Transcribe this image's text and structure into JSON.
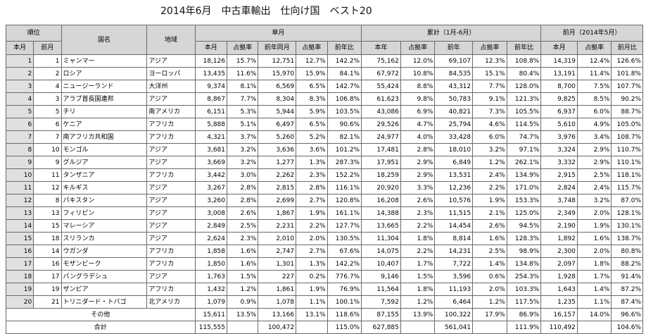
{
  "title": "2014年6月　中古車輸出　仕向け国　ベスト20",
  "headers": {
    "rank_group": "順位",
    "country": "国名",
    "region": "地域",
    "monthly": "単月",
    "cumulative": "累計（1月-6月）",
    "prev_month": "前月（2014年5月）",
    "this_month_rank": "本月",
    "prev_month_rank": "前月",
    "m_cols": [
      "本月",
      "占拠率",
      "前年同月",
      "占拠率",
      "前年比"
    ],
    "c_cols": [
      "本年",
      "占拠率",
      "前年",
      "占拠率",
      "前年比"
    ],
    "p_cols": [
      "本月",
      "占拠率",
      "前月比"
    ]
  },
  "rows": [
    {
      "rank": "1",
      "prev": "1",
      "country": "ミャンマー",
      "region": "アジア",
      "m": [
        "18,126",
        "15.7%",
        "12,751",
        "12.7%",
        "142.2%"
      ],
      "c": [
        "75,162",
        "12.0%",
        "69,107",
        "12.3%",
        "108.8%"
      ],
      "p": [
        "14,319",
        "12.4%",
        "126.6%"
      ]
    },
    {
      "rank": "2",
      "prev": "2",
      "country": "ロシア",
      "region": "ヨーロッパ",
      "m": [
        "13,435",
        "11.6%",
        "15,970",
        "15.9%",
        "84.1%"
      ],
      "c": [
        "67,972",
        "10.8%",
        "84,535",
        "15.1%",
        "80.4%"
      ],
      "p": [
        "13,191",
        "11.4%",
        "101.8%"
      ]
    },
    {
      "rank": "3",
      "prev": "4",
      "country": "ニュージーランド",
      "region": "大洋州",
      "m": [
        "9,374",
        "8.1%",
        "6,569",
        "6.5%",
        "142.7%"
      ],
      "c": [
        "55,424",
        "8.8%",
        "43,312",
        "7.7%",
        "128.0%"
      ],
      "p": [
        "8,700",
        "7.5%",
        "107.7%"
      ]
    },
    {
      "rank": "4",
      "prev": "3",
      "country": "アラブ首長国連邦",
      "region": "アジア",
      "m": [
        "8,867",
        "7.7%",
        "8,304",
        "8.3%",
        "106.8%"
      ],
      "c": [
        "61,623",
        "9.8%",
        "50,783",
        "9.1%",
        "121.3%"
      ],
      "p": [
        "9,825",
        "8.5%",
        "90.2%"
      ]
    },
    {
      "rank": "5",
      "prev": "5",
      "country": "チリ",
      "region": "南アメリカ",
      "m": [
        "6,151",
        "5.3%",
        "5,944",
        "5.9%",
        "103.5%"
      ],
      "c": [
        "43,086",
        "6.9%",
        "40,821",
        "7.3%",
        "105.5%"
      ],
      "p": [
        "6,937",
        "6.0%",
        "88.7%"
      ]
    },
    {
      "rank": "6",
      "prev": "6",
      "country": "ケニア",
      "region": "アフリカ",
      "m": [
        "5,888",
        "5.1%",
        "6,497",
        "6.5%",
        "90.6%"
      ],
      "c": [
        "29,526",
        "4.7%",
        "25,794",
        "4.6%",
        "114.5%"
      ],
      "p": [
        "5,610",
        "4.9%",
        "105.0%"
      ]
    },
    {
      "rank": "7",
      "prev": "7",
      "country": "南アフリカ共和国",
      "region": "アフリカ",
      "m": [
        "4,321",
        "3.7%",
        "5,260",
        "5.2%",
        "82.1%"
      ],
      "c": [
        "24,977",
        "4.0%",
        "33,428",
        "6.0%",
        "74.7%"
      ],
      "p": [
        "3,976",
        "3.4%",
        "108.7%"
      ]
    },
    {
      "rank": "8",
      "prev": "10",
      "country": "モンゴル",
      "region": "アジア",
      "m": [
        "3,681",
        "3.2%",
        "3,636",
        "3.6%",
        "101.2%"
      ],
      "c": [
        "17,481",
        "2.8%",
        "18,010",
        "3.2%",
        "97.1%"
      ],
      "p": [
        "3,324",
        "2.9%",
        "110.7%"
      ]
    },
    {
      "rank": "9",
      "prev": "9",
      "country": "グルジア",
      "region": "アジア",
      "m": [
        "3,669",
        "3.2%",
        "1,277",
        "1.3%",
        "287.3%"
      ],
      "c": [
        "17,951",
        "2.9%",
        "6,849",
        "1.2%",
        "262.1%"
      ],
      "p": [
        "3,332",
        "2.9%",
        "110.1%"
      ]
    },
    {
      "rank": "10",
      "prev": "11",
      "country": "タンザニア",
      "region": "アフリカ",
      "m": [
        "3,442",
        "3.0%",
        "2,262",
        "2.3%",
        "152.2%"
      ],
      "c": [
        "18,259",
        "2.9%",
        "13,531",
        "2.4%",
        "134.9%"
      ],
      "p": [
        "2,915",
        "2.5%",
        "118.1%"
      ]
    },
    {
      "rank": "11",
      "prev": "12",
      "country": "キルギス",
      "region": "アジア",
      "m": [
        "3,267",
        "2.8%",
        "2,815",
        "2.8%",
        "116.1%"
      ],
      "c": [
        "20,920",
        "3.3%",
        "12,236",
        "2.2%",
        "171.0%"
      ],
      "p": [
        "2,824",
        "2.4%",
        "115.7%"
      ]
    },
    {
      "rank": "12",
      "prev": "8",
      "country": "パキスタン",
      "region": "アジア",
      "m": [
        "3,260",
        "2.8%",
        "2,699",
        "2.7%",
        "120.8%"
      ],
      "c": [
        "16,208",
        "2.6%",
        "10,576",
        "1.9%",
        "153.3%"
      ],
      "p": [
        "3,748",
        "3.2%",
        "87.0%"
      ]
    },
    {
      "rank": "13",
      "prev": "13",
      "country": "フィリピン",
      "region": "アジア",
      "m": [
        "3,008",
        "2.6%",
        "1,867",
        "1.9%",
        "161.1%"
      ],
      "c": [
        "14,388",
        "2.3%",
        "11,515",
        "2.1%",
        "125.0%"
      ],
      "p": [
        "2,349",
        "2.0%",
        "128.1%"
      ]
    },
    {
      "rank": "14",
      "prev": "15",
      "country": "マレーシア",
      "region": "アジア",
      "m": [
        "2,849",
        "2.5%",
        "2,231",
        "2.2%",
        "127.7%"
      ],
      "c": [
        "13,665",
        "2.2%",
        "14,454",
        "2.6%",
        "94.5%"
      ],
      "p": [
        "2,190",
        "1.9%",
        "130.1%"
      ]
    },
    {
      "rank": "15",
      "prev": "18",
      "country": "スリランカ",
      "region": "アジア",
      "m": [
        "2,624",
        "2.3%",
        "2,010",
        "2.0%",
        "130.5%"
      ],
      "c": [
        "11,304",
        "1.8%",
        "8,814",
        "1.6%",
        "128.3%"
      ],
      "p": [
        "1,892",
        "1.6%",
        "138.7%"
      ]
    },
    {
      "rank": "16",
      "prev": "14",
      "country": "ウガンダ",
      "region": "アフリカ",
      "m": [
        "1,858",
        "1.6%",
        "2,747",
        "2.7%",
        "67.6%"
      ],
      "c": [
        "14,075",
        "2.2%",
        "14,231",
        "2.5%",
        "98.9%"
      ],
      "p": [
        "2,300",
        "2.0%",
        "80.8%"
      ]
    },
    {
      "rank": "17",
      "prev": "16",
      "country": "モザンビーク",
      "region": "アフリカ",
      "m": [
        "1,850",
        "1.6%",
        "1,301",
        "1.3%",
        "142.2%"
      ],
      "c": [
        "10,407",
        "1.7%",
        "7,722",
        "1.4%",
        "134.8%"
      ],
      "p": [
        "2,097",
        "1.8%",
        "88.2%"
      ]
    },
    {
      "rank": "18",
      "prev": "17",
      "country": "バングラデシュ",
      "region": "アジア",
      "m": [
        "1,763",
        "1.5%",
        "227",
        "0.2%",
        "776.7%"
      ],
      "c": [
        "9,146",
        "1.5%",
        "3,596",
        "0.6%",
        "254.3%"
      ],
      "p": [
        "1,928",
        "1.7%",
        "91.4%"
      ]
    },
    {
      "rank": "19",
      "prev": "19",
      "country": "ザンビア",
      "region": "アフリカ",
      "m": [
        "1,432",
        "1.2%",
        "1,861",
        "1.9%",
        "76.9%"
      ],
      "c": [
        "11,564",
        "1.8%",
        "11,193",
        "2.0%",
        "103.3%"
      ],
      "p": [
        "1,643",
        "1.4%",
        "87.2%"
      ]
    },
    {
      "rank": "20",
      "prev": "21",
      "country": "トリニダード・トバゴ",
      "region": "北アメリカ",
      "m": [
        "1,079",
        "0.9%",
        "1,078",
        "1.1%",
        "100.1%"
      ],
      "c": [
        "7,592",
        "1.2%",
        "6,464",
        "1.2%",
        "117.5%"
      ],
      "p": [
        "1,235",
        "1.1%",
        "87.4%"
      ]
    }
  ],
  "others": {
    "label": "その他",
    "m": [
      "15,611",
      "13.5%",
      "13,166",
      "13.1%",
      "118.6%"
    ],
    "c": [
      "87,155",
      "13.9%",
      "100,322",
      "17.9%",
      "86.9%"
    ],
    "p": [
      "16,157",
      "14.0%",
      "96.6%"
    ]
  },
  "total": {
    "label": "合計",
    "m": [
      "115,555",
      "100,472",
      "115.0%"
    ],
    "c": [
      "627,885",
      "561,041",
      "111.9%"
    ],
    "p": [
      "110,492",
      "104.6%"
    ]
  }
}
